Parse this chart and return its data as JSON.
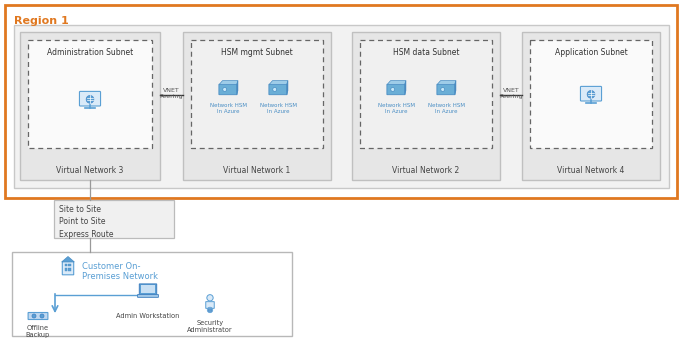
{
  "title": "Region 1",
  "bg_color": "#ffffff",
  "region_border_color": "#e07820",
  "vnet3_label": "Virtual Network 3",
  "vnet1_label": "Virtual Network 1",
  "vnet2_label": "Virtual Network 2",
  "vnet4_label": "Virtual Network 4",
  "admin_subnet_label": "Administration Subnet",
  "hsm_mgmt_label": "HSM mgmt Subnet",
  "hsm_data_label": "HSM data Subnet",
  "app_subnet_label": "Application Subnet",
  "vnet_peering1": "VNET\nPeering",
  "vnet_peering2": "VNET\nPeering",
  "site_to_site": "Site to Site\nPoint to Site\nExpress Route",
  "customer_label": "Customer On-\nPremises Network",
  "admin_workstation": "Admin Workstation",
  "offline_backup": "Offline\nBackup",
  "security_admin": "Security\nAdministrator",
  "hsm_label": "Network HSM\nIn Azure"
}
